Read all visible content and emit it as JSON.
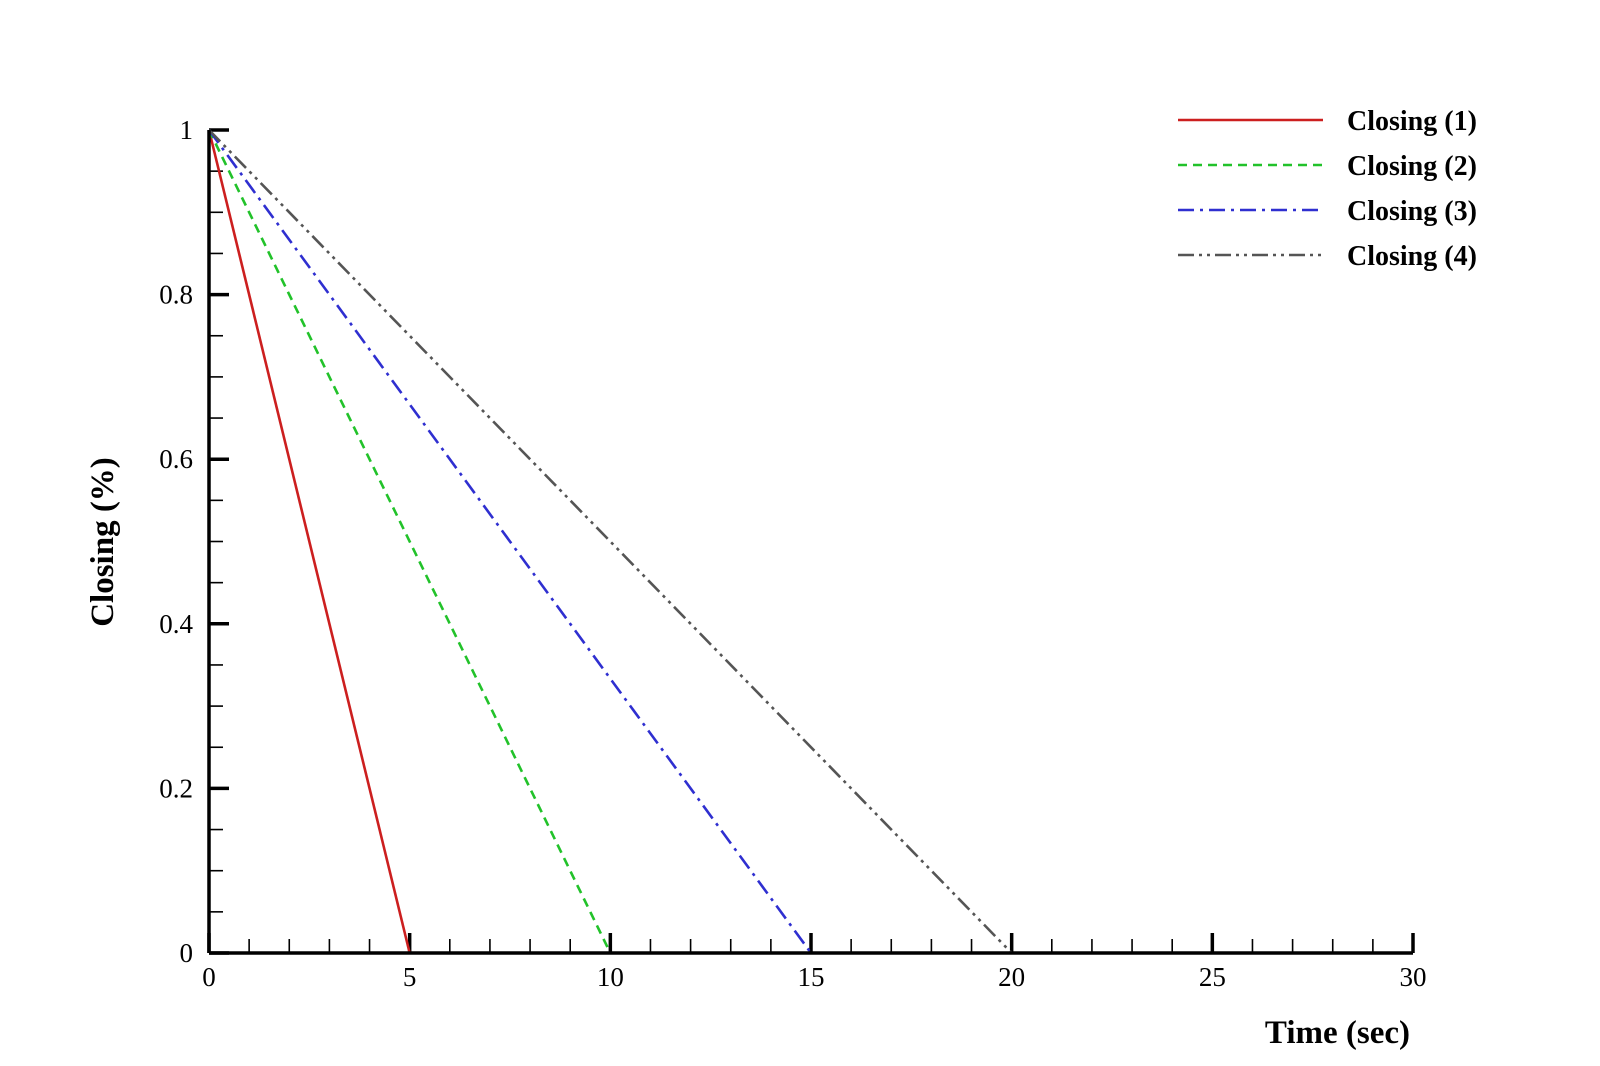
{
  "chart_data": {
    "type": "line",
    "title": "",
    "xlabel": "Time (sec)",
    "ylabel": "Closing (%)",
    "xlim": [
      0,
      30
    ],
    "ylim": [
      0,
      1
    ],
    "x_ticks": [
      0,
      5,
      10,
      15,
      20,
      25,
      30
    ],
    "x_tick_labels": [
      "0",
      "5",
      "10",
      "15",
      "20",
      "25",
      "30"
    ],
    "y_ticks": [
      0,
      0.2,
      0.4,
      0.6,
      0.8,
      1
    ],
    "y_tick_labels": [
      "0",
      "0.2",
      "0.4",
      "0.6",
      "0.8",
      "1"
    ],
    "x_minor_step": 1,
    "y_minor_step": 0.05,
    "grid": false,
    "legend_position": "top-right",
    "series": [
      {
        "name": "Closing (1)",
        "color": "#cc1f1f",
        "dash": "solid",
        "x": [
          0,
          5
        ],
        "y": [
          1,
          0
        ]
      },
      {
        "name": "Closing (2)",
        "color": "#22c22a",
        "dash": "dashed",
        "x": [
          0,
          10
        ],
        "y": [
          1,
          0
        ]
      },
      {
        "name": "Closing (3)",
        "color": "#2f2fd0",
        "dash": "dashdot",
        "x": [
          0,
          15
        ],
        "y": [
          1,
          0
        ]
      },
      {
        "name": "Closing (4)",
        "color": "#555555",
        "dash": "dashdotdot",
        "x": [
          0,
          20
        ],
        "y": [
          1,
          0
        ]
      }
    ]
  }
}
